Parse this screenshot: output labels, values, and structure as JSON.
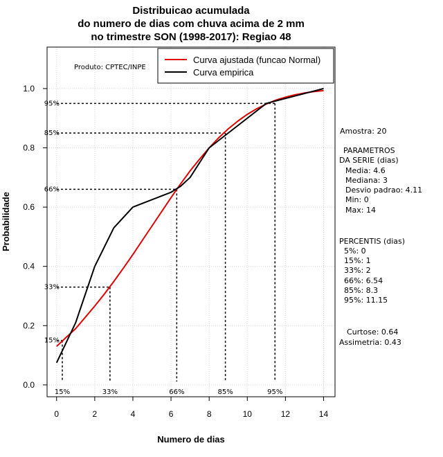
{
  "chart_data": {
    "type": "line",
    "title_lines": [
      "Distribuicao acumulada",
      "do numero de dias com chuva acima de 2 mm",
      "no trimestre SON (1998-2017): Regiao 48"
    ],
    "xlabel": "Numero de dias",
    "ylabel": "Probabilidade",
    "xlim": [
      -0.5,
      14.6
    ],
    "ylim": [
      -0.04,
      1.14
    ],
    "x_ticks": [
      0,
      2,
      4,
      6,
      8,
      10,
      12,
      14
    ],
    "y_ticks": [
      "0.0",
      "0.2",
      "0.4",
      "0.6",
      "0.8",
      "1.0"
    ],
    "grid": true,
    "legend_position": "top-right",
    "product_note": "Produto: CPTEC/INPE",
    "series": [
      {
        "name": "Curva ajustada (funcao Normal)",
        "color": "#e00000",
        "x": [
          0,
          0.5,
          1,
          1.5,
          2,
          2.5,
          3,
          3.5,
          4,
          4.5,
          5,
          5.5,
          6,
          6.5,
          7,
          7.5,
          8,
          8.5,
          9,
          9.5,
          10,
          10.5,
          11,
          11.5,
          12,
          12.5,
          13,
          13.5,
          14
        ],
        "y": [
          0.13,
          0.16,
          0.19,
          0.228,
          0.266,
          0.306,
          0.349,
          0.394,
          0.44,
          0.488,
          0.536,
          0.584,
          0.632,
          0.678,
          0.722,
          0.762,
          0.8,
          0.834,
          0.864,
          0.89,
          0.913,
          0.932,
          0.948,
          0.961,
          0.971,
          0.979,
          0.985,
          0.99,
          0.993
        ]
      },
      {
        "name": "Curva empirica",
        "color": "#000000",
        "x": [
          0,
          1,
          2,
          3,
          4,
          6,
          6.5,
          7,
          8,
          11,
          14
        ],
        "y": [
          0.075,
          0.21,
          0.4,
          0.53,
          0.6,
          0.65,
          0.67,
          0.7,
          0.8,
          0.95,
          1.0
        ]
      }
    ],
    "percentile_markers": [
      {
        "label": "15%",
        "p": 0.15,
        "x": 0.3
      },
      {
        "label": "33%",
        "p": 0.33,
        "x": 2.8
      },
      {
        "label": "66%",
        "p": 0.66,
        "x": 6.3
      },
      {
        "label": "85%",
        "p": 0.85,
        "x": 8.85
      },
      {
        "label": "95%",
        "p": 0.95,
        "x": 11.45
      }
    ]
  },
  "side_panel": {
    "sample": "Amostra: 20",
    "params_title_1": "PARAMETROS",
    "params_title_2": "DA SERIE (dias)",
    "params": [
      "Media: 4.6",
      "Mediana: 3",
      "Desvio padrao: 4.11",
      "Min: 0",
      "Max: 14"
    ],
    "percentis_title": "PERCENTIS (dias)",
    "percentis": [
      "5%: 0",
      "15%: 1",
      "33%: 2",
      "66%: 6.54",
      "85%: 8.3",
      "95%: 11.15"
    ],
    "kurtosis": "Curtose: 0.64",
    "skewness": "Assimetria: 0.43"
  }
}
